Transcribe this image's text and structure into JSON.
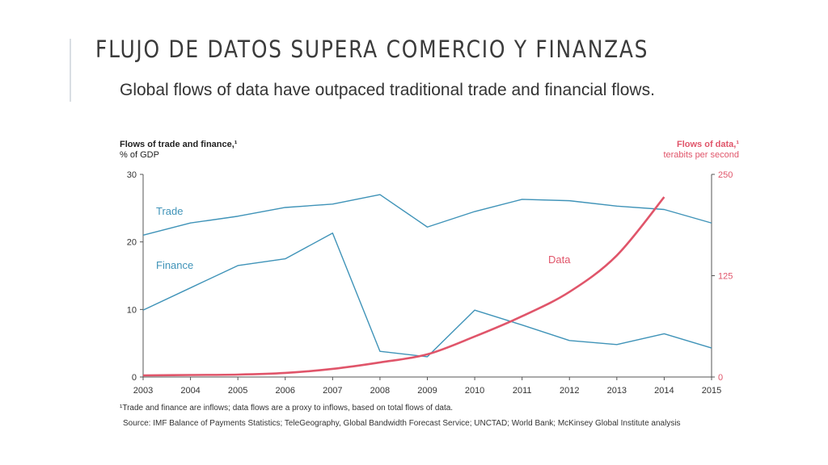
{
  "slide": {
    "title": "FLUJO DE DATOS SUPERA COMERCIO Y FINANZAS"
  },
  "chart_data": {
    "type": "line",
    "title": "Global flows of data have outpaced traditional trade and financial flows.",
    "left_axis": {
      "title": "Flows of trade and finance,¹",
      "unit": "% of GDP",
      "ticks": [
        0,
        10,
        20,
        30
      ],
      "ylim": [
        0,
        30
      ]
    },
    "right_axis": {
      "title": "Flows of data,¹",
      "unit": "terabits per second",
      "ticks": [
        0,
        125,
        250
      ],
      "ylim": [
        0,
        250
      ],
      "color": "#e0556a"
    },
    "x": [
      "2003",
      "2004",
      "2005",
      "2006",
      "2007",
      "2008",
      "2009",
      "2010",
      "2011",
      "2012",
      "2013",
      "2014",
      "2015"
    ],
    "series": [
      {
        "name": "Trade",
        "axis": "left",
        "color": "#3f93b8",
        "values": [
          21,
          22.8,
          23.8,
          25.1,
          25.6,
          27,
          22.2,
          24.5,
          26.3,
          26.1,
          25.3,
          24.8,
          22.8
        ]
      },
      {
        "name": "Finance",
        "axis": "left",
        "color": "#3f93b8",
        "values": [
          9.9,
          13.2,
          16.5,
          17.5,
          21.3,
          3.8,
          3,
          9.9,
          7.7,
          5.4,
          4.8,
          6.4,
          4.3
        ]
      },
      {
        "name": "Data",
        "axis": "right",
        "color": "#e0556a",
        "values": [
          2,
          2.5,
          3,
          5,
          10,
          18,
          28,
          50,
          75,
          105,
          150,
          222,
          null
        ]
      }
    ],
    "grid": false,
    "legend": "inline labels"
  },
  "footnote": "¹Trade and finance are inflows; data flows are a proxy to inflows, based on total flows of data.",
  "source": "Source: IMF Balance of Payments Statistics; TeleGeography, Global Bandwidth Forecast Service; UNCTAD; World Bank; McKinsey Global Institute analysis"
}
